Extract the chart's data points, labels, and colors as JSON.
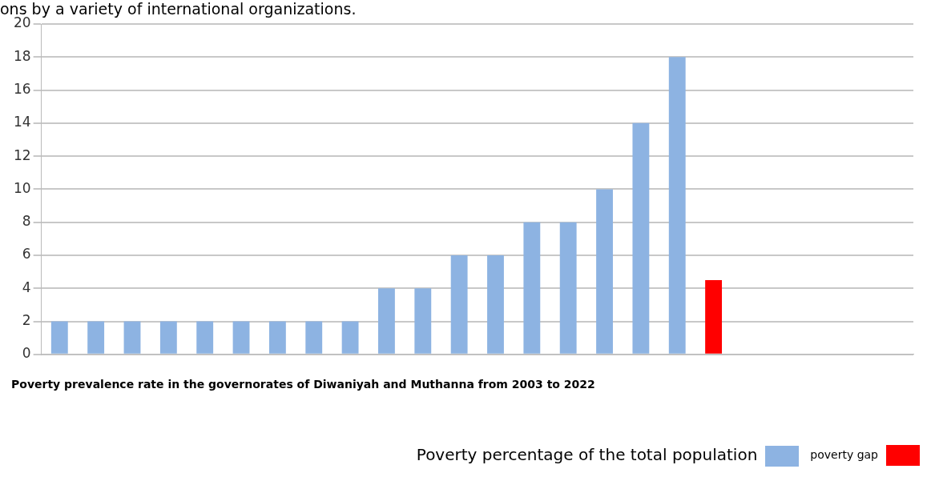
{
  "chart_data": {
    "type": "bar",
    "title": "Poverty prevalence rate in the governorates of Diwaniyah and Muthanna from 2003 to 2022",
    "annotations": [
      "ons by a variety of international organizations."
    ],
    "categories": [
      null,
      null,
      null,
      null,
      null,
      null,
      null,
      null,
      null,
      null,
      null,
      null,
      null,
      null,
      null,
      null,
      null,
      null,
      null,
      null,
      null,
      null,
      null,
      null
    ],
    "series": [
      {
        "name": "Poverty percentage of the total population",
        "color": "#8db3e2",
        "values": [
          2,
          2,
          2,
          2,
          2,
          2,
          2,
          2,
          2,
          4,
          4,
          6,
          6,
          8,
          8,
          10,
          14,
          18,
          null,
          null,
          null,
          null,
          null,
          null
        ]
      },
      {
        "name": "poverty gap",
        "color": "#ff0000",
        "values": [
          null,
          null,
          null,
          null,
          null,
          null,
          null,
          null,
          null,
          null,
          null,
          null,
          null,
          null,
          null,
          null,
          null,
          null,
          4.5,
          null,
          null,
          null,
          null,
          null
        ]
      }
    ],
    "ylim": [
      0,
      20
    ],
    "yticks": [
      0,
      2,
      4,
      6,
      8,
      10,
      12,
      14,
      16,
      18,
      20
    ],
    "grid": "y",
    "legend": "bottom right"
  }
}
